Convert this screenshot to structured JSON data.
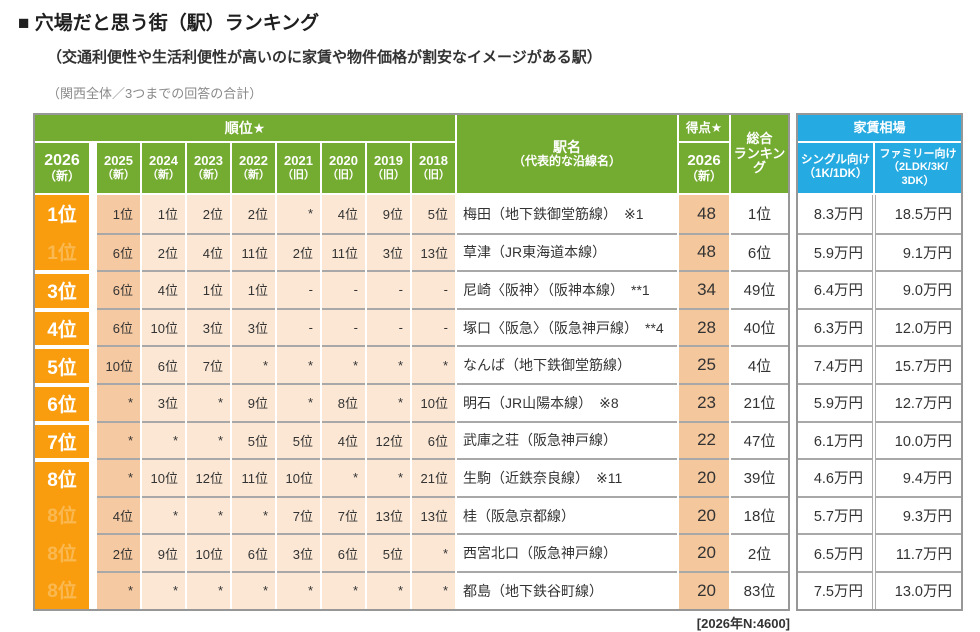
{
  "title": "■ 穴場だと思う街（駅）ランキング",
  "subtitle": "（交通利便性や生活利便性が高いのに家賃や物件価格が割安なイメージがある駅）",
  "note": "（関西全体／3つまでの回答の合計）",
  "footnote": "[2026年N:4600]",
  "colors": {
    "header_green": "#74AB31",
    "rank_orange": "#F99D0F",
    "rent_header_blue": "#25AAE1",
    "column_peach_dark": "#F5C9A2",
    "column_peach_light": "#FBE7D4",
    "score_peach": "#F4C79D",
    "border_gray": "#A8A8A8"
  },
  "headers": {
    "rank_group": "順位★",
    "rank_col_l1": "2026",
    "rank_col_l2": "（新）",
    "years": [
      {
        "l1": "2025",
        "l2": "（新）"
      },
      {
        "l1": "2024",
        "l2": "（新）"
      },
      {
        "l1": "2023",
        "l2": "（新）"
      },
      {
        "l1": "2022",
        "l2": "（新）"
      },
      {
        "l1": "2021",
        "l2": "（旧）"
      },
      {
        "l1": "2020",
        "l2": "（旧）"
      },
      {
        "l1": "2019",
        "l2": "（旧）"
      },
      {
        "l1": "2018",
        "l2": "（旧）"
      }
    ],
    "station_l1": "駅名",
    "station_l2": "（代表的な沿線名）",
    "score_top": "得点★",
    "score_bottom_l1": "2026",
    "score_bottom_l2": "（新）",
    "overall": "総合\nランキング",
    "rent_group": "家賃相場",
    "rent_single": "シングル向け\n（1K/1DK）",
    "rent_family": "ファミリー向け\n（2LDK/3K/\n3DK）"
  },
  "rows": [
    {
      "rank": "1位",
      "tied": false,
      "history": [
        "1位",
        "1位",
        "2位",
        "2位",
        "*",
        "4位",
        "9位",
        "5位"
      ],
      "station": "梅田（地下鉄御堂筋線）　※1",
      "score": "48",
      "overall": "1位",
      "rent_single": "8.3万円",
      "rent_family": "18.5万円"
    },
    {
      "rank": "1位",
      "tied": true,
      "history": [
        "6位",
        "2位",
        "4位",
        "11位",
        "2位",
        "11位",
        "3位",
        "13位"
      ],
      "station": "草津（JR東海道本線）",
      "score": "48",
      "overall": "6位",
      "rent_single": "5.9万円",
      "rent_family": "9.1万円"
    },
    {
      "rank": "3位",
      "tied": false,
      "history": [
        "6位",
        "4位",
        "1位",
        "1位",
        "-",
        "-",
        "-",
        "-"
      ],
      "station": "尼崎〈阪神〉（阪神本線）　**1",
      "score": "34",
      "overall": "49位",
      "rent_single": "6.4万円",
      "rent_family": "9.0万円"
    },
    {
      "rank": "4位",
      "tied": false,
      "history": [
        "6位",
        "10位",
        "3位",
        "3位",
        "-",
        "-",
        "-",
        "-"
      ],
      "station": "塚口〈阪急〉（阪急神戸線）　**4",
      "score": "28",
      "overall": "40位",
      "rent_single": "6.3万円",
      "rent_family": "12.0万円"
    },
    {
      "rank": "5位",
      "tied": false,
      "history": [
        "10位",
        "6位",
        "7位",
        "*",
        "*",
        "*",
        "*",
        "*"
      ],
      "station": "なんば（地下鉄御堂筋線）",
      "score": "25",
      "overall": "4位",
      "rent_single": "7.4万円",
      "rent_family": "15.7万円"
    },
    {
      "rank": "6位",
      "tied": false,
      "history": [
        "*",
        "3位",
        "*",
        "9位",
        "*",
        "8位",
        "*",
        "10位"
      ],
      "station": "明石（JR山陽本線）　※8",
      "score": "23",
      "overall": "21位",
      "rent_single": "5.9万円",
      "rent_family": "12.7万円"
    },
    {
      "rank": "7位",
      "tied": false,
      "history": [
        "*",
        "*",
        "*",
        "5位",
        "5位",
        "4位",
        "12位",
        "6位"
      ],
      "station": "武庫之荘（阪急神戸線）",
      "score": "22",
      "overall": "47位",
      "rent_single": "6.1万円",
      "rent_family": "10.0万円"
    },
    {
      "rank": "8位",
      "tied": false,
      "history": [
        "*",
        "10位",
        "12位",
        "11位",
        "10位",
        "*",
        "*",
        "21位"
      ],
      "station": "生駒（近鉄奈良線）　※11",
      "score": "20",
      "overall": "39位",
      "rent_single": "4.6万円",
      "rent_family": "9.4万円"
    },
    {
      "rank": "8位",
      "tied": true,
      "history": [
        "4位",
        "*",
        "*",
        "*",
        "7位",
        "7位",
        "13位",
        "13位"
      ],
      "station": "桂（阪急京都線）",
      "score": "20",
      "overall": "18位",
      "rent_single": "5.7万円",
      "rent_family": "9.3万円"
    },
    {
      "rank": "8位",
      "tied": true,
      "history": [
        "2位",
        "9位",
        "10位",
        "6位",
        "3位",
        "6位",
        "5位",
        "*"
      ],
      "station": "西宮北口（阪急神戸線）",
      "score": "20",
      "overall": "2位",
      "rent_single": "6.5万円",
      "rent_family": "11.7万円"
    },
    {
      "rank": "8位",
      "tied": true,
      "history": [
        "*",
        "*",
        "*",
        "*",
        "*",
        "*",
        "*",
        "*"
      ],
      "station": "都島（地下鉄谷町線）",
      "score": "20",
      "overall": "83位",
      "rent_single": "7.5万円",
      "rent_family": "13.0万円"
    }
  ]
}
